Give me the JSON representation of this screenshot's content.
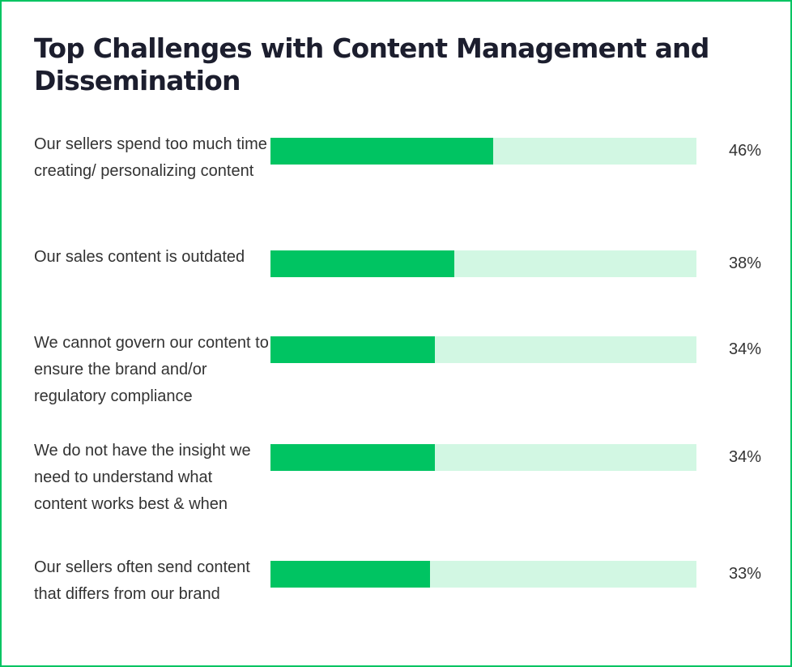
{
  "chart_data": {
    "type": "bar",
    "orientation": "horizontal",
    "title": "Top Challenges with Content Management and Dissemination",
    "categories": [
      "Our sellers spend too much time creating/ personalizing content",
      "Our sales content is outdated",
      "We cannot govern our content to ensure the brand and/or regulatory compliance",
      "We do not have the insight we need to understand what content works best & when",
      "Our sellers often send content that differs from our brand"
    ],
    "values": [
      46,
      38,
      34,
      34,
      33
    ],
    "value_labels": [
      "46%",
      "38%",
      "34%",
      "34%",
      "33%"
    ],
    "xlim": [
      0,
      100
    ],
    "xlabel": "",
    "ylabel": "",
    "grid": false,
    "colors": {
      "fill": "#00c462",
      "track": "#d2f7e3",
      "border": "#00c462",
      "title": "#1c1e2e",
      "text": "#333333"
    }
  }
}
